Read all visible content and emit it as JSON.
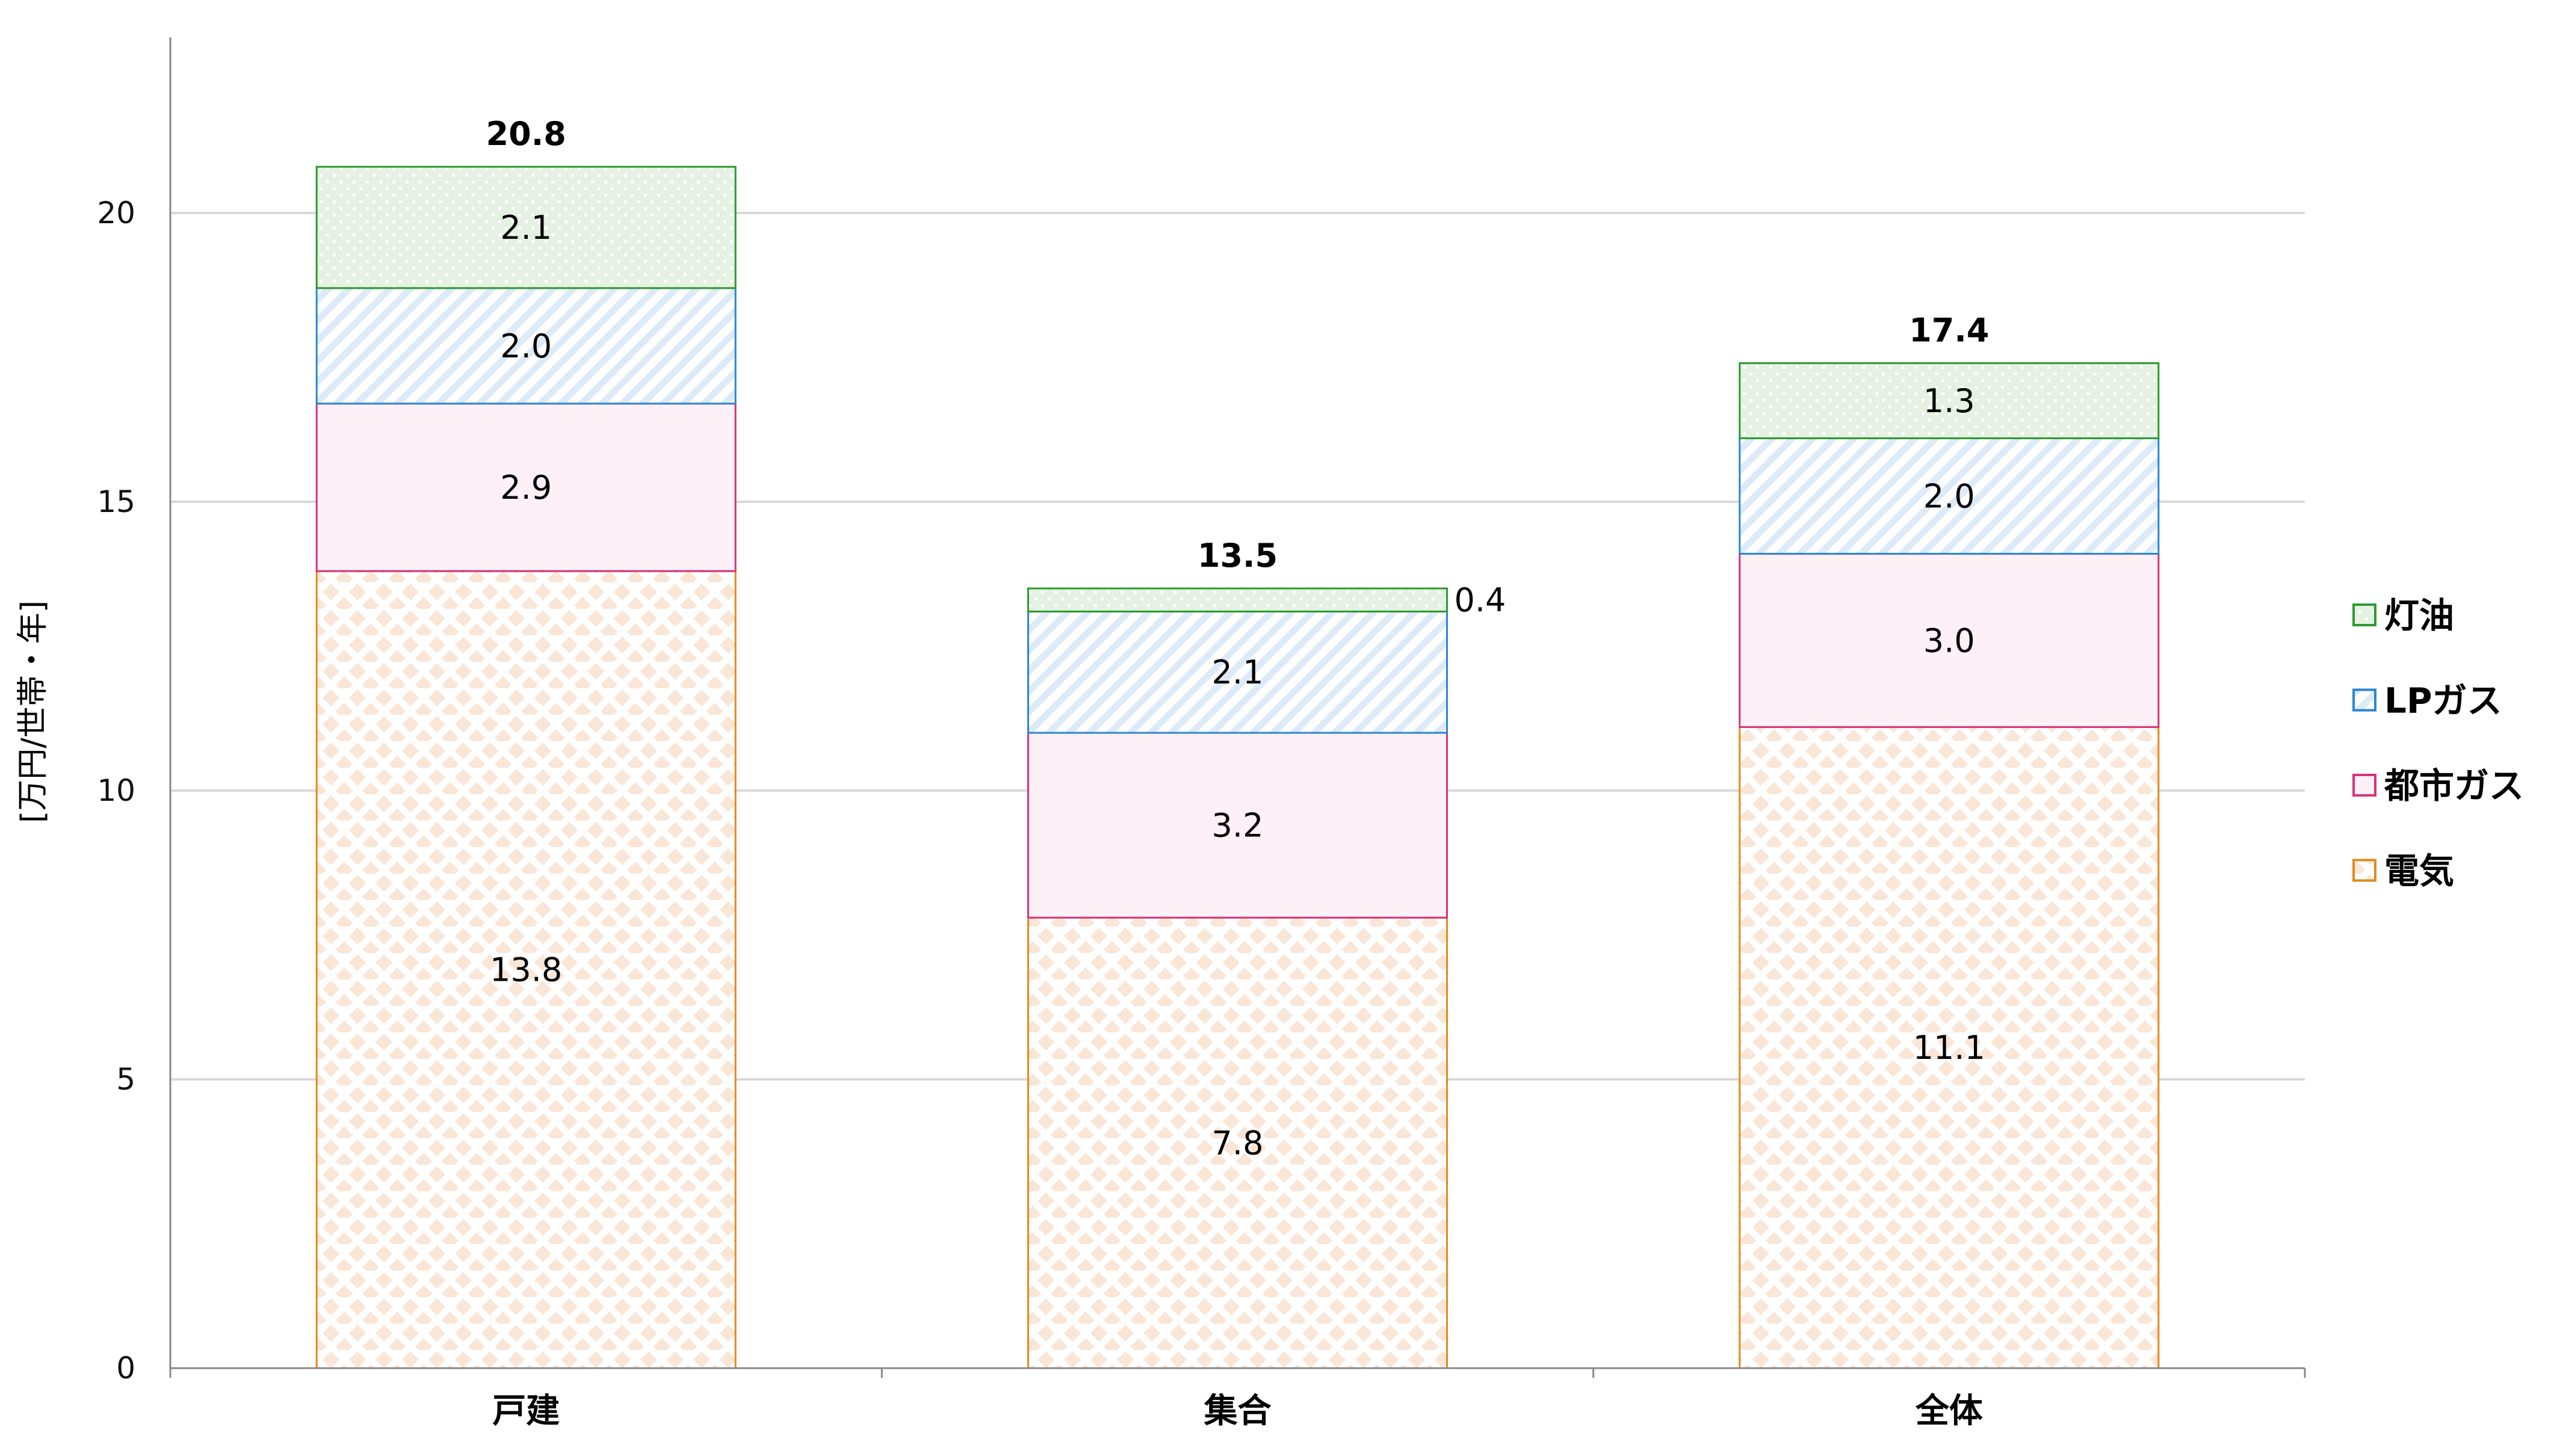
{
  "chart_data": {
    "type": "stacked-bar",
    "title": "",
    "xlabel": "",
    "ylabel": "[万円/世帯・年]",
    "ylim": [
      0,
      23
    ],
    "yticks": [
      0,
      5,
      10,
      15,
      20
    ],
    "grid": true,
    "legend_placement": "right",
    "categories": [
      "戸建",
      "集合",
      "全体"
    ],
    "series": [
      {
        "name": "電気",
        "values": [
          13.8,
          7.8,
          11.1
        ],
        "labels": [
          "13.8",
          "7.8",
          "11.1"
        ],
        "color": "#e08a1e",
        "fill": "#f9e6d6",
        "pattern": "diamond"
      },
      {
        "name": "都市ガス",
        "values": [
          2.9,
          3.2,
          3.0
        ],
        "labels": [
          "2.9",
          "3.2",
          "3.0"
        ],
        "color": "#d6337a",
        "fill": "#fdf0f6",
        "pattern": "solid"
      },
      {
        "name": "LPガス",
        "values": [
          2.0,
          2.1,
          2.0
        ],
        "labels": [
          "2.0",
          "2.1",
          "2.0"
        ],
        "color": "#2a86d6",
        "fill": "#dcebf7",
        "pattern": "diagonal"
      },
      {
        "name": "灯油",
        "values": [
          2.1,
          0.4,
          1.3
        ],
        "labels": [
          "2.1",
          "0.4",
          "1.3"
        ],
        "color": "#2e9a2e",
        "fill": "#e5f1e3",
        "pattern": "dots"
      }
    ],
    "totals": [
      20.8,
      13.5,
      17.4
    ],
    "total_labels": [
      "20.8",
      "13.5",
      "17.4"
    ]
  }
}
